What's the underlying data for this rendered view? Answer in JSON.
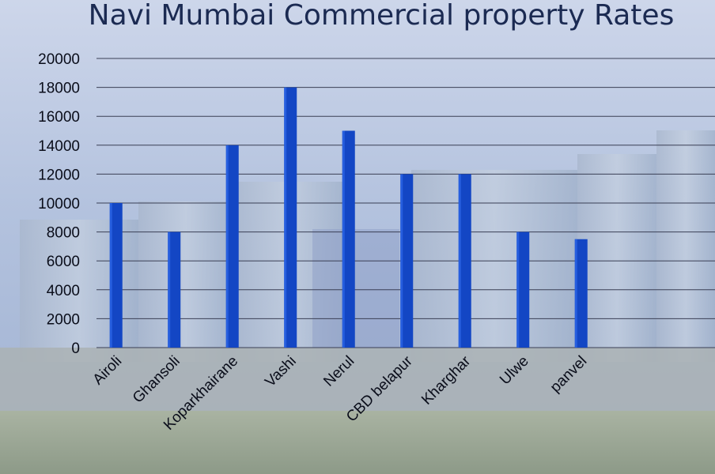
{
  "colors": {
    "bar": "#1346c4",
    "bar_highlight": "#2c64e6",
    "gridline": "#3a3f55",
    "axis_text": "#0a0d1a",
    "title": "#1b2a52"
  },
  "chart_data": {
    "type": "bar",
    "title": "Navi Mumbai Commercial property Rates",
    "xlabel": "",
    "ylabel": "",
    "ylim": [
      0,
      20000
    ],
    "yticks": [
      0,
      2000,
      4000,
      6000,
      8000,
      10000,
      12000,
      14000,
      16000,
      18000,
      20000
    ],
    "grid": true,
    "categories": [
      "Airoli",
      "Ghansoli",
      "Koparkhairane",
      "Vashi",
      "Nerul",
      "CBD belapur",
      "Kharghar",
      "Ulwe",
      "panvel"
    ],
    "values": [
      10000,
      8000,
      14000,
      18000,
      15000,
      12000,
      12000,
      8000,
      7500
    ]
  }
}
